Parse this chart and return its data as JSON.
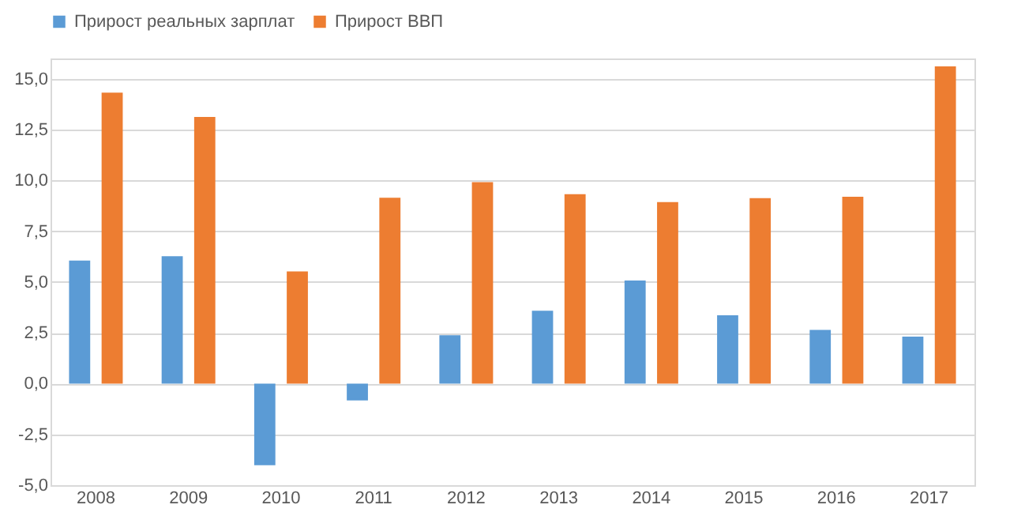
{
  "chart_data": {
    "type": "bar",
    "categories": [
      "2008",
      "2009",
      "2010",
      "2011",
      "2012",
      "2013",
      "2014",
      "2015",
      "2016",
      "2017"
    ],
    "series": [
      {
        "name": "Прирост реальных зарплат",
        "color": "#5b9bd5",
        "values": [
          6.05,
          6.27,
          -4.02,
          -0.83,
          2.38,
          3.58,
          5.07,
          3.36,
          2.64,
          2.31
        ]
      },
      {
        "name": "Прирост ВВП",
        "color": "#ed7d31",
        "values": [
          14.32,
          13.12,
          5.52,
          9.15,
          9.91,
          9.32,
          8.93,
          9.13,
          9.19,
          15.61
        ]
      }
    ],
    "ylim": [
      -5,
      16
    ],
    "yticks": [
      {
        "value": -5,
        "label": "-5,0"
      },
      {
        "value": -2.5,
        "label": "-2,5"
      },
      {
        "value": 0,
        "label": "0,0"
      },
      {
        "value": 2.5,
        "label": "2,5"
      },
      {
        "value": 5,
        "label": "5,0"
      },
      {
        "value": 7.5,
        "label": "7,5"
      },
      {
        "value": 10,
        "label": "10,0"
      },
      {
        "value": 12.5,
        "label": "12,5"
      },
      {
        "value": 15,
        "label": "15,0"
      }
    ],
    "grid": "y",
    "legend": "top"
  }
}
